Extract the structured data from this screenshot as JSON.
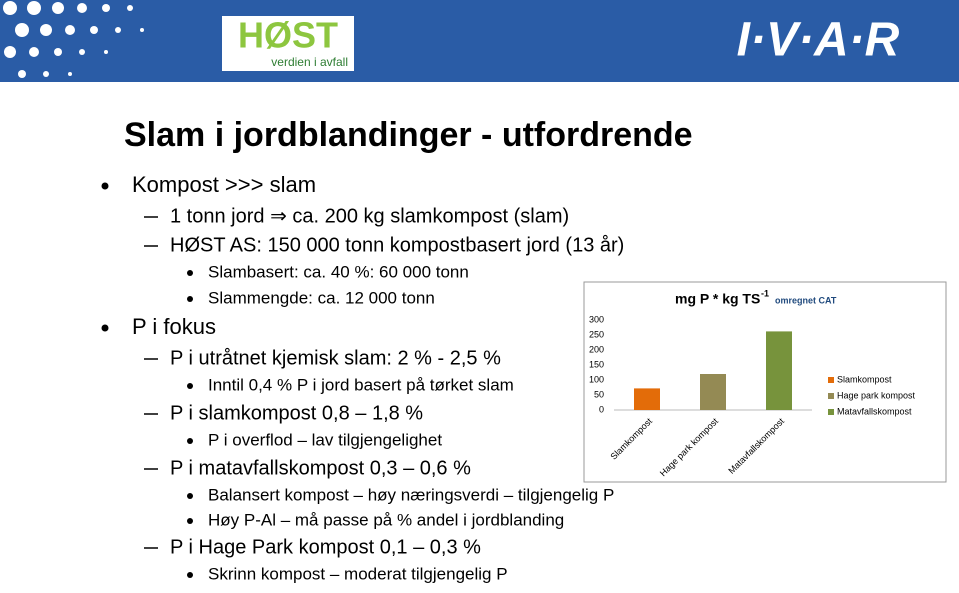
{
  "header": {
    "logo_left": "HØST",
    "logo_left_tagline": "verdien i avfall",
    "logo_right": "I·V·A·R"
  },
  "title": "Slam i jordblandinger - utfordrende",
  "bullets": [
    {
      "text": "Kompost >>> slam",
      "children": [
        {
          "text": "1 tonn jord ⇒ ca. 200 kg slamkompost (slam)",
          "children": []
        },
        {
          "text": "HØST AS: 150 000 tonn kompostbasert jord (13 år)",
          "children": [
            {
              "text": "Slambasert: ca. 40 %: 60 000 tonn",
              "children": []
            },
            {
              "text": "Slammengde: ca. 12 000 tonn",
              "children": []
            }
          ]
        }
      ]
    },
    {
      "text": "P i fokus",
      "children": [
        {
          "text": "P i utråtnet kjemisk slam: 2 % - 2,5 %",
          "children": [
            {
              "text": "Inntil 0,4 % P i jord basert på tørket slam",
              "children": []
            }
          ]
        },
        {
          "text": "P i slamkompost 0,8 – 1,8 %",
          "children": [
            {
              "text": "P i overflod – lav tilgjengelighet",
              "children": []
            }
          ]
        },
        {
          "text": "P i matavfallskompost 0,3 – 0,6 %",
          "children": [
            {
              "text": "Balansert kompost – høy næringsverdi – tilgjengelig P",
              "children": []
            },
            {
              "text": "Høy P-Al – må passe på % andel i jordblanding",
              "children": []
            }
          ]
        },
        {
          "text": "P i Hage Park kompost 0,1 – 0,3 %",
          "children": [
            {
              "text": "Skrinn kompost – moderat tilgjengelig P",
              "children": []
            }
          ]
        }
      ]
    }
  ],
  "chart": {
    "type": "bar",
    "title": "mg P * kg TS",
    "title_superscript": "-1",
    "title_note": "omregnet CAT",
    "categories": [
      "Slamkompost",
      "Hage park kompost",
      "Matavfallskompost"
    ],
    "values": [
      72,
      120,
      262
    ],
    "colors": [
      "#e36c09",
      "#948a54",
      "#77933c"
    ],
    "ylim": [
      0,
      300
    ],
    "yticks": [
      0,
      50,
      100,
      150,
      200,
      250,
      300
    ],
    "legend": "right"
  }
}
